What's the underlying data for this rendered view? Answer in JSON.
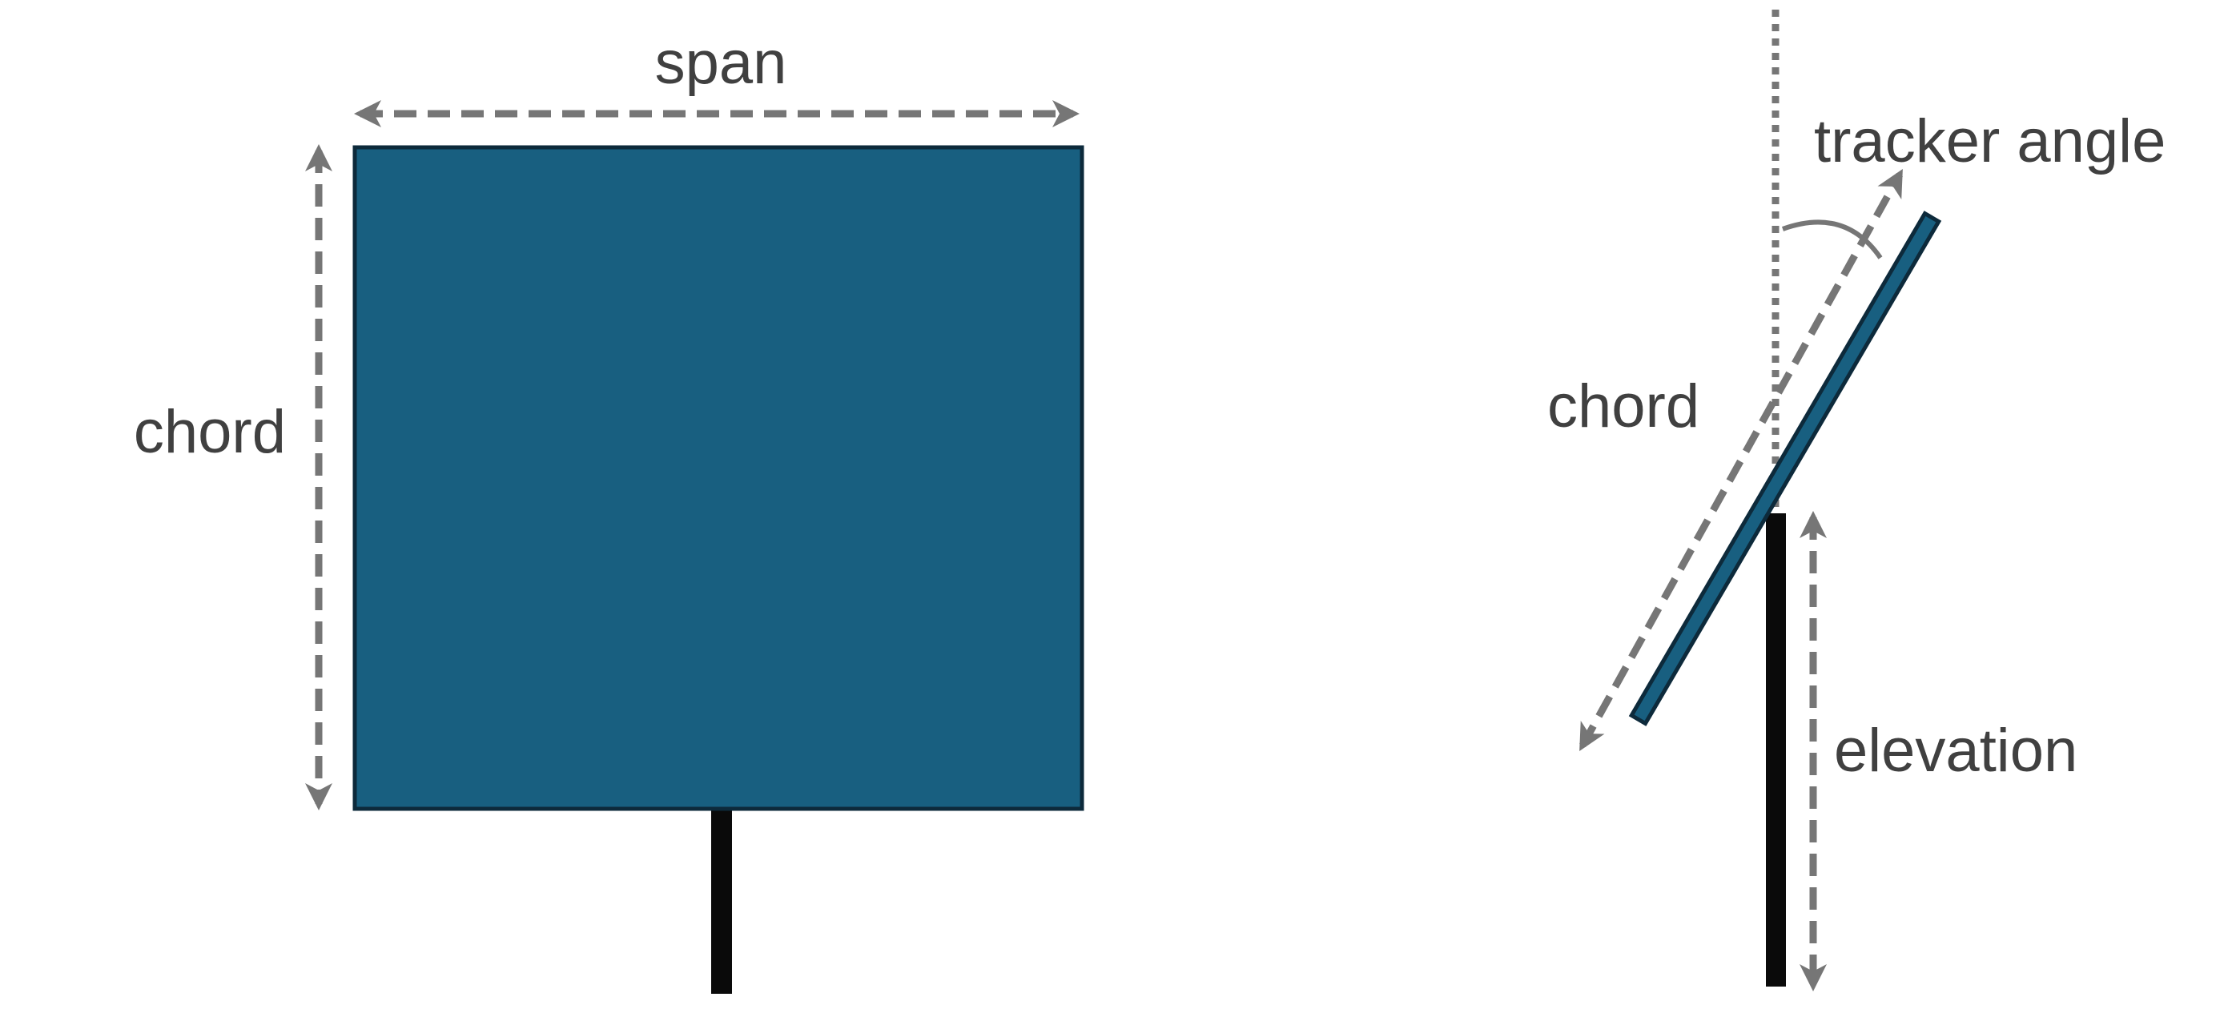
{
  "labels": {
    "span": "span",
    "chord_front": "chord",
    "tracker_angle": "tracker angle",
    "chord_side": "chord",
    "elevation": "elevation"
  },
  "colors": {
    "panel_fill": "#185F80",
    "panel_edge": "#0D2A3B",
    "post": "#0a0a0a",
    "dimension": "#767676",
    "text": "#404040",
    "background": "#ffffff"
  }
}
